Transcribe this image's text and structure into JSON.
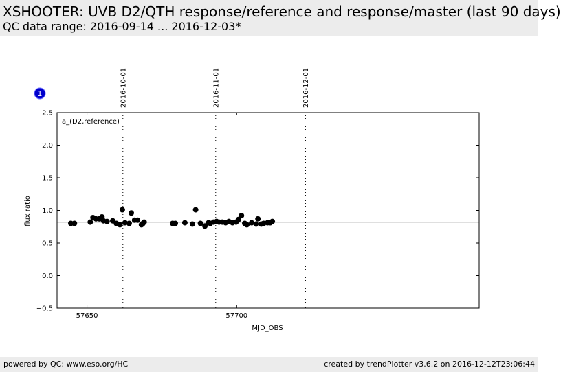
{
  "header": {
    "title": "XSHOOTER: UVB D2/QTH response/reference and response/master (last 90 days)",
    "subtitle": "QC data range: 2016-09-14 ... 2016-12-03*"
  },
  "panel_badge": "1",
  "footer": {
    "left": "powered by QC: www.eso.org/HC",
    "right": "created by trendPlotter v3.6.2 on 2016-12-12T23:06:44"
  },
  "colors": {
    "background_bar": "#ececec",
    "badge": "#0000cc",
    "points": "#000000"
  },
  "chart_data": {
    "type": "scatter",
    "title": "",
    "xlabel": "MJD_OBS",
    "ylabel": "flux ratio",
    "annotation": "a_(D2,reference)",
    "xlim": [
      57640,
      57781
    ],
    "ylim": [
      -0.5,
      2.5
    ],
    "xticks": [
      57650,
      57700
    ],
    "yticks": [
      -0.5,
      0.0,
      0.5,
      1.0,
      1.5,
      2.0,
      2.5
    ],
    "ytick_labels": [
      "−0.5",
      "0.0",
      "0.5",
      "1.0",
      "1.5",
      "2.0",
      "2.5"
    ],
    "grid": false,
    "reference_line": 0.82,
    "date_markers": [
      {
        "mjd": 57662,
        "label": "2016-10-01"
      },
      {
        "mjd": 57693,
        "label": "2016-11-01"
      },
      {
        "mjd": 57723,
        "label": "2016-12-01"
      }
    ],
    "series": [
      {
        "x": [
          57644.6,
          57645.8,
          57651.1,
          57652.0,
          57653.0,
          57654.1,
          57655.0,
          57655.5,
          57656.7,
          57658.6,
          57659.8,
          57661.0,
          57661.8,
          57662.7,
          57664.1,
          57664.8,
          57665.9,
          57666.9,
          57668.2,
          57668.7,
          57669.1,
          57678.6,
          57679.5,
          57682.7,
          57685.2,
          57686.3,
          57687.9,
          57689.4,
          57690.6,
          57691.2,
          57692.3,
          57693.3,
          57694.1,
          57695.2,
          57696.3,
          57697.4,
          57698.6,
          57699.8,
          57700.6,
          57701.6,
          57702.7,
          57703.4,
          57705.0,
          57706.5,
          57707.1,
          57708.2,
          57709.0,
          57710.3,
          57711.2,
          57711.9
        ],
        "y": [
          0.8,
          0.8,
          0.82,
          0.89,
          0.87,
          0.87,
          0.9,
          0.84,
          0.83,
          0.84,
          0.8,
          0.78,
          1.01,
          0.81,
          0.8,
          0.96,
          0.85,
          0.85,
          0.78,
          0.8,
          0.82,
          0.8,
          0.8,
          0.81,
          0.79,
          1.01,
          0.8,
          0.76,
          0.81,
          0.8,
          0.82,
          0.83,
          0.82,
          0.82,
          0.81,
          0.83,
          0.81,
          0.82,
          0.86,
          0.92,
          0.8,
          0.78,
          0.81,
          0.79,
          0.87,
          0.79,
          0.8,
          0.81,
          0.81,
          0.83
        ]
      }
    ]
  }
}
